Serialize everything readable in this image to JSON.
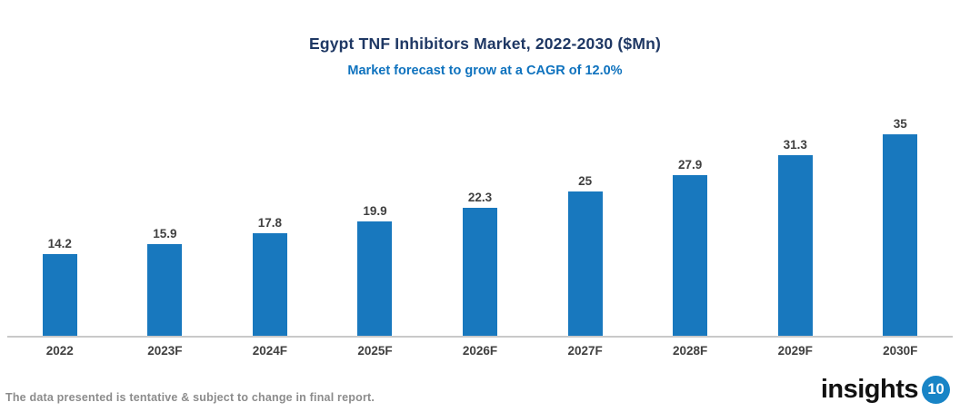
{
  "chart_data": {
    "type": "bar",
    "title": "Egypt TNF Inhibitors Market, 2022-2030 ($Mn)",
    "subtitle": "Market forecast to grow at a CAGR of 12.0%",
    "categories": [
      "2022",
      "2023F",
      "2024F",
      "2025F",
      "2026F",
      "2027F",
      "2028F",
      "2029F",
      "2030F"
    ],
    "values": [
      14.2,
      15.9,
      17.8,
      19.9,
      22.3,
      25,
      27.9,
      31.3,
      35
    ],
    "value_labels": [
      "14.2",
      "15.9",
      "17.8",
      "19.9",
      "22.3",
      "25",
      "27.9",
      "31.3",
      "35"
    ],
    "xlabel": "",
    "ylabel": "",
    "ylim": [
      0,
      35
    ],
    "grid": false,
    "legend_position": "none",
    "bar_color": "#1878BE",
    "title_color": "#1F3864",
    "subtitle_color": "#0E72BE",
    "label_color": "#404040",
    "axis_line_color": "#C9C9C9"
  },
  "footer": {
    "note": "The data presented is tentative & subject to change in final report.",
    "logo_text": "insights",
    "logo_badge": "10"
  }
}
